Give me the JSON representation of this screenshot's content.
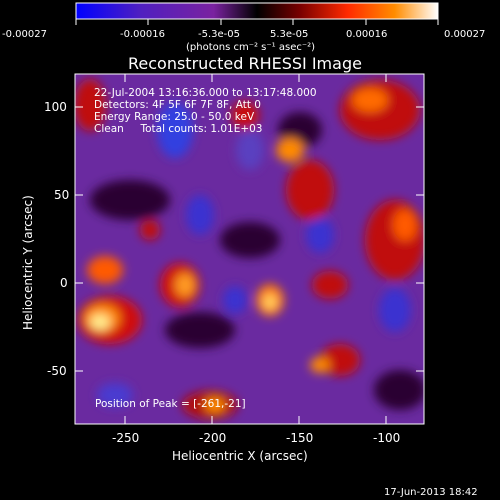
{
  "colorbar": {
    "tick_labels": [
      "-0.00027",
      "-0.00016",
      "-5.3e-05",
      "5.3e-05",
      "0.00016",
      "0.00027"
    ],
    "unit_label": "(photons cm⁻² s⁻¹ asec⁻²)",
    "stops": [
      "#0000ff",
      "#5020c0",
      "#7a22a0",
      "#000000",
      "#7a0000",
      "#ff2a00",
      "#ff8c00",
      "#ffffff"
    ]
  },
  "image": {
    "title": "Reconstructed RHESSI Image",
    "annotations": [
      "22-Jul-2004 13:16:36.000 to 13:17:48.000",
      "Detectors: 4F 5F 6F 7F 8F, Att 0",
      "Energy Range: 25.0 - 50.0 keV",
      "Clean     Total counts: 1.01E+03"
    ],
    "peak_label": "Position of Peak = [-261,-21]",
    "x_axis": {
      "label": "Heliocentric X (arcsec)",
      "ticks": [
        "-250",
        "-200",
        "-150",
        "-100"
      ]
    },
    "y_axis": {
      "label": "Heliocentric Y (arcsec)",
      "ticks": [
        "100",
        "50",
        "0",
        "-50"
      ]
    }
  },
  "footer": {
    "timestamp": "17-Jun-2013 18:42"
  }
}
